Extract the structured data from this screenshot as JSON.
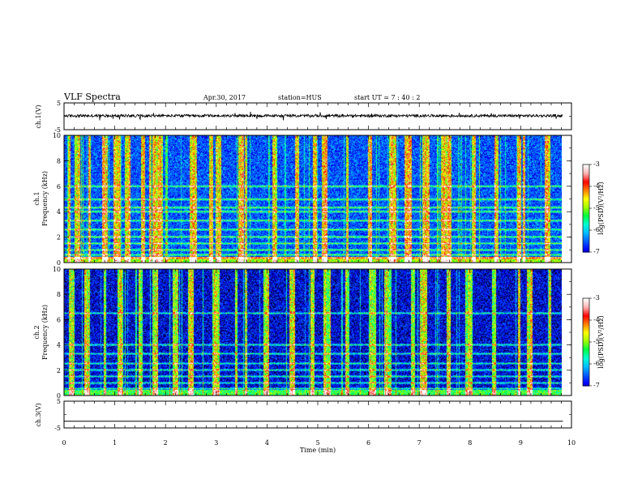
{
  "header": {
    "title": "VLF Spectra",
    "date": "Apr.30, 2017",
    "station": "station=HUS",
    "start": "start  UT =   7 : 40 : 2"
  },
  "chart_data": [
    {
      "type": "line",
      "panel": "ch1-waveform",
      "ylabel": "ch.1(V)",
      "ylim": [
        -5,
        5
      ],
      "yticks": [
        "5",
        "-5"
      ],
      "baseline_value": 0.2
    },
    {
      "type": "heatmap",
      "panel": "ch1-spectrogram",
      "ylabel_top": "ch.1",
      "ylabel": "Frequency (kHz)",
      "ylim": [
        0,
        10
      ],
      "yticks": [
        "0",
        "2",
        "4",
        "6",
        "8",
        "10"
      ],
      "colorbar": {
        "label": "log(PSD)(V²/Hz)",
        "range": [
          -7,
          -3
        ],
        "ticks": [
          "-3",
          "-4",
          "-5",
          "-6",
          "-7"
        ]
      },
      "background_color": "#0a32c8",
      "burst_minutes": [
        0.1,
        0.25,
        0.5,
        0.8,
        1.05,
        1.25,
        1.55,
        1.7,
        1.8,
        1.9,
        2.55,
        2.9,
        3.05,
        3.5,
        3.6,
        4.15,
        4.6,
        4.95,
        5.15,
        5.6,
        6.05,
        6.5,
        6.8,
        7.15,
        7.5,
        7.6,
        8.1,
        8.55,
        9.0,
        9.1,
        9.55
      ],
      "bands_khz": [
        0.3,
        0.6,
        1.0,
        1.5,
        2.0,
        2.6,
        3.3,
        4.0,
        4.3,
        5.0,
        6.0
      ]
    },
    {
      "type": "heatmap",
      "panel": "ch2-spectrogram",
      "ylabel_top": "ch.2",
      "ylabel": "Frequency (kHz)",
      "ylim": [
        0,
        10
      ],
      "yticks": [
        "0",
        "2",
        "4",
        "6",
        "8",
        "10"
      ],
      "colorbar": {
        "label": "log(PSD)(V²/Hz)",
        "range": [
          -7,
          -3
        ],
        "ticks": [
          "-3",
          "-4",
          "-5",
          "-6",
          "-7"
        ]
      },
      "background_color": "#061e96",
      "burst_minutes": [
        0.15,
        0.45,
        0.8,
        1.1,
        1.5,
        1.8,
        2.2,
        2.5,
        3.0,
        3.4,
        3.6,
        4.0,
        4.5,
        4.9,
        5.2,
        5.6,
        6.1,
        6.4,
        6.9,
        7.1,
        7.6,
        8.0,
        8.5,
        9.0,
        9.2,
        9.6
      ],
      "bands_khz": [
        0.5,
        1.0,
        1.5,
        2.0,
        2.5,
        3.3,
        4.0,
        6.5
      ]
    },
    {
      "type": "line",
      "panel": "ch3-waveform",
      "ylabel": "ch.3(V)",
      "ylim": [
        -5,
        5
      ],
      "yticks": [
        "5",
        "-5"
      ],
      "baseline_value": -2.5
    }
  ],
  "xaxis": {
    "xlabel": "Time (min)",
    "xlim": [
      0,
      10
    ],
    "ticks": [
      "0",
      "1",
      "2",
      "3",
      "4",
      "5",
      "6",
      "7",
      "8",
      "9",
      "10"
    ],
    "data_end_minute": 9.83
  },
  "colors": {
    "colormap": [
      "#000000",
      "#000050",
      "#0000ff",
      "#0060ff",
      "#00c0ff",
      "#00ffd0",
      "#00ff40",
      "#a0ff00",
      "#ffff00",
      "#ff8000",
      "#ff0000",
      "#ffb0b0",
      "#ffffff"
    ]
  }
}
